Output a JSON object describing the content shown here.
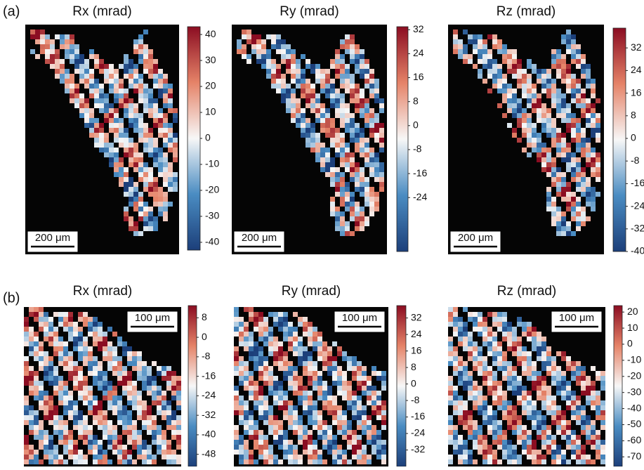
{
  "panels": [
    {
      "label": "(a)",
      "maps": [
        {
          "title": "Rx (mrad)",
          "scale_bar": "200 μm",
          "colorbar": {
            "lim": [
              -43,
              43
            ],
            "ticks": [
              40,
              30,
              20,
              10,
              0,
              -10,
              -20,
              -30,
              -40
            ]
          }
        },
        {
          "title": "Ry (mrad)",
          "scale_bar": "200 μm",
          "colorbar": {
            "lim": [
              -42,
              33
            ],
            "ticks": [
              32,
              24,
              16,
              8,
              0,
              -8,
              -16,
              -24
            ]
          }
        },
        {
          "title": "Rz (mrad)",
          "scale_bar": "200 μm",
          "colorbar": {
            "lim": [
              -40,
              39
            ],
            "ticks": [
              32,
              24,
              16,
              8,
              0,
              -8,
              -16,
              -24,
              -32,
              -40
            ]
          }
        }
      ]
    },
    {
      "label": "(b)",
      "maps": [
        {
          "title": "Rx (mrad)",
          "scale_bar": "100 μm",
          "colorbar": {
            "lim": [
              -53,
              13
            ],
            "ticks": [
              8,
              0,
              -8,
              -16,
              -24,
              -32,
              -40,
              -48
            ]
          }
        },
        {
          "title": "Ry (mrad)",
          "scale_bar": "100 μm",
          "colorbar": {
            "lim": [
              -40,
              38
            ],
            "ticks": [
              32,
              24,
              16,
              8,
              0,
              -8,
              -16,
              -24,
              -32
            ]
          }
        },
        {
          "title": "Rz (mrad)",
          "scale_bar": "100 μm",
          "colorbar": {
            "lim": [
              -76,
              24
            ],
            "ticks": [
              20,
              10,
              0,
              -10,
              -20,
              -30,
              -40,
              -50,
              -60,
              -70
            ]
          }
        }
      ]
    }
  ]
}
